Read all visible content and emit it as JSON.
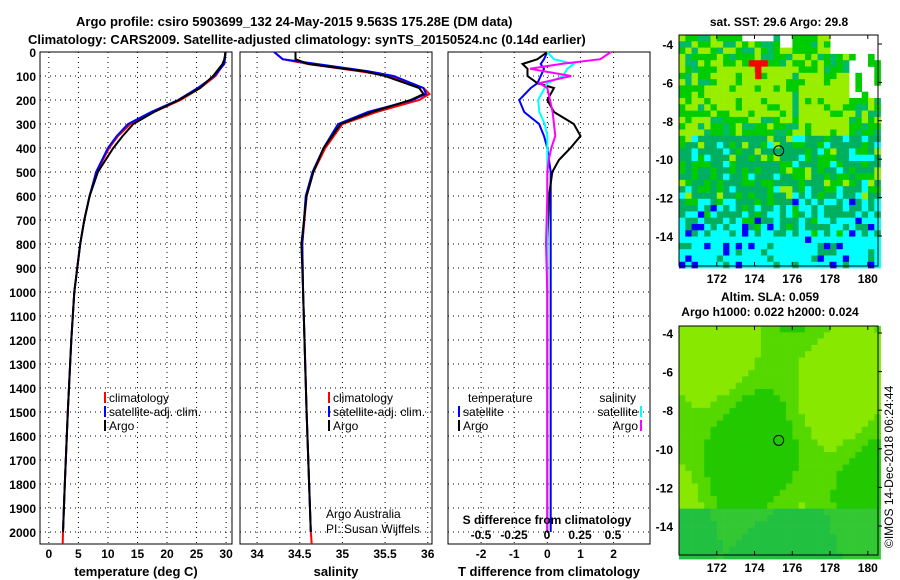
{
  "titles": {
    "line1": "Argo profile: csiro 5903699_132 24-May-2015 9.563S 175.28E (DM data)",
    "line2": "Climatology: CARS2009. Satellite-adjusted climatology: synTS_20150524.nc (0.14d earlier)"
  },
  "credit": {
    "line1": "Argo Australia",
    "line2": "PI: Susan Wijffels"
  },
  "timestamp": "©IMOS 14-Dec-2018 06:24:44",
  "colors": {
    "climatology": "#ff0000",
    "satellite": "#0000ff",
    "argo": "#000000",
    "sal_satellite": "#00ffff",
    "sal_argo": "#ff00ff"
  },
  "chart_data": [
    {
      "type": "line",
      "name": "temperature",
      "xlabel": "temperature (deg C)",
      "ylabel": "",
      "xticks": [
        0,
        5,
        10,
        15,
        20,
        25,
        30
      ],
      "xlim": [
        -1.5,
        31
      ],
      "ylim": [
        2050,
        0
      ],
      "yticks": [
        0,
        100,
        200,
        300,
        400,
        500,
        600,
        700,
        800,
        900,
        1000,
        1100,
        1200,
        1300,
        1400,
        1500,
        1600,
        1700,
        1800,
        1900,
        2000
      ],
      "grid": true,
      "legend": {
        "position": "bottom-left",
        "entries": [
          "climatology",
          "satellite-adj. clim.",
          "Argo"
        ]
      },
      "depth": [
        0,
        30,
        50,
        100,
        150,
        200,
        250,
        300,
        350,
        400,
        500,
        600,
        700,
        800,
        1000,
        1200,
        1500,
        1800,
        2000,
        2050
      ],
      "series": [
        {
          "name": "climatology",
          "color": "#ff0000",
          "values": [
            29.9,
            29.8,
            29.6,
            28.2,
            25.6,
            22.3,
            17.8,
            13.8,
            11.7,
            10.2,
            8.1,
            6.9,
            6.0,
            5.3,
            4.3,
            3.8,
            3.2,
            2.7,
            2.4,
            2.35
          ]
        },
        {
          "name": "satellite-adj. clim.",
          "color": "#0000ff",
          "values": [
            29.9,
            29.8,
            29.7,
            28.0,
            25.2,
            21.9,
            17.3,
            13.4,
            11.5,
            10.0,
            8.0,
            6.9,
            6.0,
            5.3,
            4.3,
            3.8,
            3.2,
            2.7,
            2.4,
            null
          ]
        },
        {
          "name": "Argo",
          "color": "#000000",
          "values": [
            29.9,
            29.7,
            29.4,
            27.8,
            25.6,
            22.0,
            17.8,
            14.3,
            12.5,
            10.9,
            8.3,
            6.9,
            6.0,
            5.3,
            4.3,
            3.8,
            3.2,
            2.7,
            2.4,
            null
          ]
        }
      ]
    },
    {
      "type": "line",
      "name": "salinity",
      "xlabel": "salinity",
      "xticks": [
        34,
        34.5,
        35,
        35.5,
        36
      ],
      "xlim": [
        33.8,
        36.05
      ],
      "ylim": [
        2050,
        0
      ],
      "grid": true,
      "legend": {
        "position": "bottom-right",
        "entries": [
          "climatology",
          "satellite-adj. clim.",
          "Argo"
        ]
      },
      "depth": [
        0,
        30,
        50,
        80,
        100,
        150,
        175,
        200,
        250,
        300,
        400,
        500,
        600,
        800,
        1000,
        1500,
        2000,
        2050
      ],
      "series": [
        {
          "name": "climatology",
          "color": "#ff0000",
          "values": [
            34.2,
            34.3,
            34.6,
            35.2,
            35.55,
            35.95,
            36.02,
            35.9,
            35.4,
            35.0,
            34.8,
            34.66,
            34.58,
            34.53,
            34.54,
            34.58,
            34.63,
            34.64
          ]
        },
        {
          "name": "satellite-adj. clim.",
          "color": "#0000ff",
          "values": [
            34.2,
            34.3,
            34.7,
            35.3,
            35.6,
            35.95,
            35.98,
            35.82,
            35.3,
            34.95,
            34.78,
            34.65,
            34.57,
            34.53,
            34.54,
            34.58,
            34.63,
            null
          ]
        },
        {
          "name": "Argo",
          "color": "#000000",
          "values": [
            34.45,
            34.45,
            34.6,
            35.25,
            35.5,
            35.9,
            35.95,
            35.8,
            35.35,
            34.98,
            34.78,
            34.66,
            34.58,
            34.52,
            34.54,
            34.58,
            34.63,
            null
          ]
        }
      ]
    },
    {
      "type": "line",
      "name": "differences",
      "xlabel": "T difference from climatology",
      "xticks": [
        -2,
        -1,
        0,
        1,
        2
      ],
      "xlim": [
        -3,
        3.1
      ],
      "x2label": "S difference from climatology",
      "x2ticks": [
        "-0.5",
        "-0.25",
        "0",
        "0.25",
        "0.5"
      ],
      "x2lim": [
        -0.75,
        0.775
      ],
      "ylim": [
        2050,
        0
      ],
      "grid": true,
      "legend": {
        "position": "bottom",
        "entries": [
          "temperature",
          "satellite",
          "Argo",
          "salinity",
          "satellite",
          "Argo"
        ]
      },
      "depth": [
        0,
        30,
        50,
        70,
        100,
        130,
        150,
        200,
        250,
        300,
        350,
        400,
        450,
        500,
        600,
        800,
        1000,
        1500,
        2000
      ],
      "series": [
        {
          "name": "T satellite",
          "axis": "T",
          "color": "#0000ff",
          "values": [
            0.0,
            -0.1,
            -0.2,
            -0.1,
            -0.2,
            -0.3,
            -0.5,
            -0.85,
            -0.7,
            -0.25,
            -0.1,
            0.0,
            0.05,
            0.1,
            0.1,
            0.1,
            0.1,
            0.1,
            0.1
          ]
        },
        {
          "name": "T Argo",
          "axis": "T",
          "color": "#000000",
          "values": [
            0.0,
            -0.3,
            -0.75,
            -0.6,
            -0.6,
            -0.3,
            0.2,
            0.0,
            0.2,
            0.8,
            1.0,
            0.7,
            0.35,
            0.15,
            0.05,
            0.0,
            0.0,
            0.0,
            0.0
          ]
        },
        {
          "name": "S satellite",
          "axis": "S",
          "color": "#00ffff",
          "values": [
            0.0,
            0.05,
            0.2,
            0.15,
            0.12,
            0.0,
            -0.02,
            -0.07,
            -0.06,
            -0.02,
            0.0,
            0.0,
            0.0,
            0.0,
            0.0,
            0.0,
            0.0,
            0.0,
            0.0
          ]
        },
        {
          "name": "S Argo",
          "axis": "S",
          "color": "#ff00ff",
          "values": [
            0.48,
            0.4,
            0.1,
            -0.13,
            0.18,
            -0.06,
            0.0,
            0.02,
            0.04,
            0.05,
            0.06,
            0.03,
            0.01,
            0.0,
            0.0,
            -0.01,
            0.0,
            0.0,
            0.0
          ]
        }
      ]
    },
    {
      "type": "heatmap",
      "name": "sst-map",
      "title": "sat. SST: 29.6 Argo: 29.8",
      "xticks": [
        172,
        174,
        176,
        178,
        180
      ],
      "yticks": [
        -4,
        -6,
        -8,
        -10,
        -12,
        -14
      ],
      "xlim": [
        170.0,
        180.54
      ],
      "ylim": [
        -15.56,
        -3.53
      ],
      "marker": {
        "lon": 175.28,
        "lat": -9.563
      }
    },
    {
      "type": "heatmap",
      "name": "sla-map",
      "title1": "Altim. SLA: 0.059",
      "title2": "Argo h1000: 0.022 h2000: 0.024",
      "xticks": [
        172,
        174,
        176,
        178,
        180
      ],
      "yticks": [
        -4,
        -6,
        -8,
        -10,
        -12,
        -14
      ],
      "xlim": [
        170.0,
        180.54
      ],
      "ylim": [
        -15.6,
        -3.6
      ],
      "marker": {
        "lon": 175.28,
        "lat": -9.563
      }
    }
  ]
}
